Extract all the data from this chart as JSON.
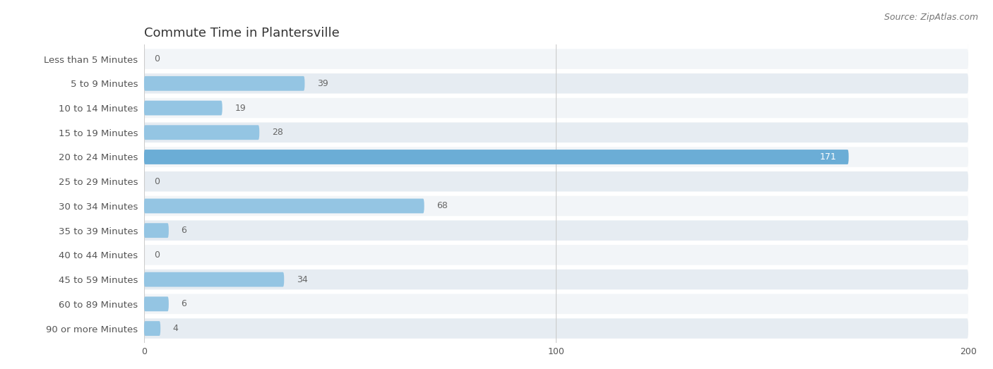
{
  "title": "Commute Time in Plantersville",
  "source": "Source: ZipAtlas.com",
  "categories": [
    "Less than 5 Minutes",
    "5 to 9 Minutes",
    "10 to 14 Minutes",
    "15 to 19 Minutes",
    "20 to 24 Minutes",
    "25 to 29 Minutes",
    "30 to 34 Minutes",
    "35 to 39 Minutes",
    "40 to 44 Minutes",
    "45 to 59 Minutes",
    "60 to 89 Minutes",
    "90 or more Minutes"
  ],
  "values": [
    0,
    39,
    19,
    28,
    171,
    0,
    68,
    6,
    0,
    34,
    6,
    4
  ],
  "highlight_index": 4,
  "bar_color_normal": "#94C5E3",
  "bar_color_highlight": "#6BADD6",
  "row_bg_light": "#F2F5F8",
  "row_bg_dark": "#E6ECF2",
  "title_color": "#333333",
  "label_color": "#555555",
  "value_color_inside": "#FFFFFF",
  "value_color_outside": "#666666",
  "source_color": "#777777",
  "xlim": [
    0,
    200
  ],
  "xticks": [
    0,
    100,
    200
  ],
  "title_fontsize": 13,
  "label_fontsize": 9.5,
  "value_fontsize": 9,
  "source_fontsize": 9,
  "tick_fontsize": 9
}
